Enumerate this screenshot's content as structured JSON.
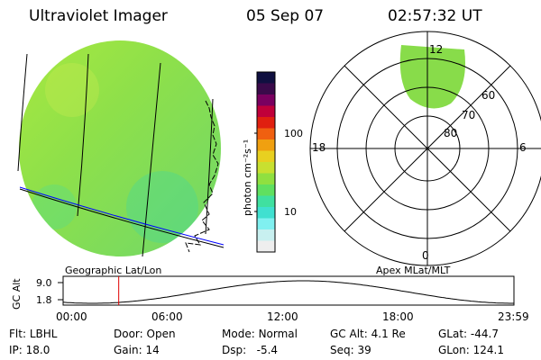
{
  "header": {
    "title": "Ultraviolet Imager",
    "date": "05 Sep 07",
    "time": "02:57:32 UT"
  },
  "colorbar": {
    "unit_label": "photon cm⁻²s⁻¹",
    "ticks": [
      "100",
      "10"
    ],
    "colors": [
      "#101040",
      "#3a0a4a",
      "#7a0060",
      "#c0003a",
      "#e02010",
      "#f06010",
      "#f0a010",
      "#e8d020",
      "#c8e030",
      "#90e040",
      "#60e060",
      "#40e0a0",
      "#40e0d0",
      "#80f0f0",
      "#c8f0f0",
      "#eeeeee"
    ]
  },
  "geo_panel": {
    "caption": "Geographic Lat/Lon",
    "image_color": "#8ee04a"
  },
  "polar_panel": {
    "caption": "Apex MLat/MLT",
    "lat_labels": [
      "60",
      "70",
      "80"
    ],
    "mlt_labels": {
      "top": "12",
      "left": "18",
      "right": "6",
      "bottom": "0"
    }
  },
  "orbit_plot": {
    "ylabel": "GC Alt",
    "ymax": "9.0",
    "ymin": "1.8",
    "xticks": [
      "00:00",
      "06:00",
      "12:00",
      "18:00",
      "23:59"
    ],
    "current_time_hours": 2.96
  },
  "info": {
    "filter_label": "Flt:",
    "filter": "LBHL",
    "ip_label": "IP:",
    "ip": "18.0",
    "door_label": "Door:",
    "door": "Open",
    "gain_label": "Gain:",
    "gain": "14",
    "mode_label": "Mode:",
    "mode": "Normal",
    "dsp_label": "Dsp:",
    "dsp": "-5.4",
    "gcalt_label": "GC Alt:",
    "gcalt": "4.1 Re",
    "seq_label": "Seq:",
    "seq": "39",
    "glat_label": "GLat:",
    "glat": "-44.7",
    "glon_label": "GLon:",
    "glon": "124.1"
  }
}
